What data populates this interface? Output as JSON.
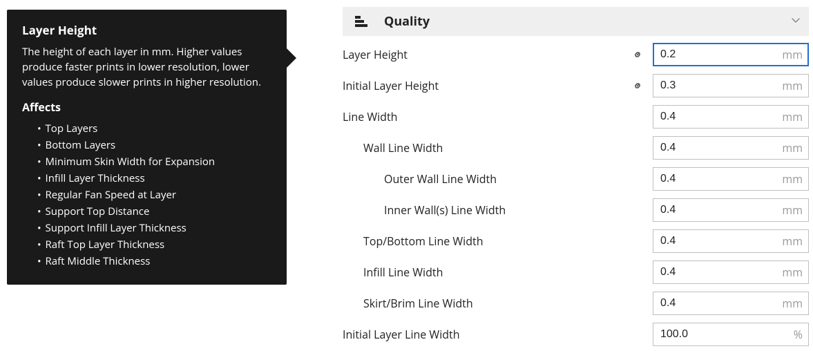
{
  "tooltip": {
    "title": "Layer Height",
    "description": "The height of each layer in mm. Higher values produce faster prints in lower resolution, lower values produce slower prints in higher resolution.",
    "affects_heading": "Affects",
    "affects": [
      "Top Layers",
      "Bottom Layers",
      "Minimum Skin Width for Expansion",
      "Infill Layer Thickness",
      "Regular Fan Speed at Layer",
      "Support Top Distance",
      "Support Infill Layer Thickness",
      "Raft Top Layer Thickness",
      "Raft Middle Thickness"
    ]
  },
  "section": {
    "title": "Quality",
    "icon": "layers-icon"
  },
  "settings": [
    {
      "label": "Layer Height",
      "value": "0.2",
      "unit": "mm",
      "indent": 0,
      "linked": true,
      "focused": true
    },
    {
      "label": "Initial Layer Height",
      "value": "0.3",
      "unit": "mm",
      "indent": 0,
      "linked": true,
      "focused": false
    },
    {
      "label": "Line Width",
      "value": "0.4",
      "unit": "mm",
      "indent": 0,
      "linked": false,
      "focused": false
    },
    {
      "label": "Wall Line Width",
      "value": "0.4",
      "unit": "mm",
      "indent": 1,
      "linked": false,
      "focused": false
    },
    {
      "label": "Outer Wall Line Width",
      "value": "0.4",
      "unit": "mm",
      "indent": 2,
      "linked": false,
      "focused": false
    },
    {
      "label": "Inner Wall(s) Line Width",
      "value": "0.4",
      "unit": "mm",
      "indent": 2,
      "linked": false,
      "focused": false
    },
    {
      "label": "Top/Bottom Line Width",
      "value": "0.4",
      "unit": "mm",
      "indent": 1,
      "linked": false,
      "focused": false
    },
    {
      "label": "Infill Line Width",
      "value": "0.4",
      "unit": "mm",
      "indent": 1,
      "linked": false,
      "focused": false
    },
    {
      "label": "Skirt/Brim Line Width",
      "value": "0.4",
      "unit": "mm",
      "indent": 1,
      "linked": false,
      "focused": false
    },
    {
      "label": "Initial Layer Line Width",
      "value": "100.0",
      "unit": "%",
      "indent": 0,
      "linked": false,
      "focused": false
    }
  ],
  "colors": {
    "tooltip_bg": "#1a1a1a",
    "focus_border": "#1f6fd0",
    "header_bg": "#efefef",
    "unit_color": "#9a9a9a",
    "border_color": "#bfbfbf"
  }
}
